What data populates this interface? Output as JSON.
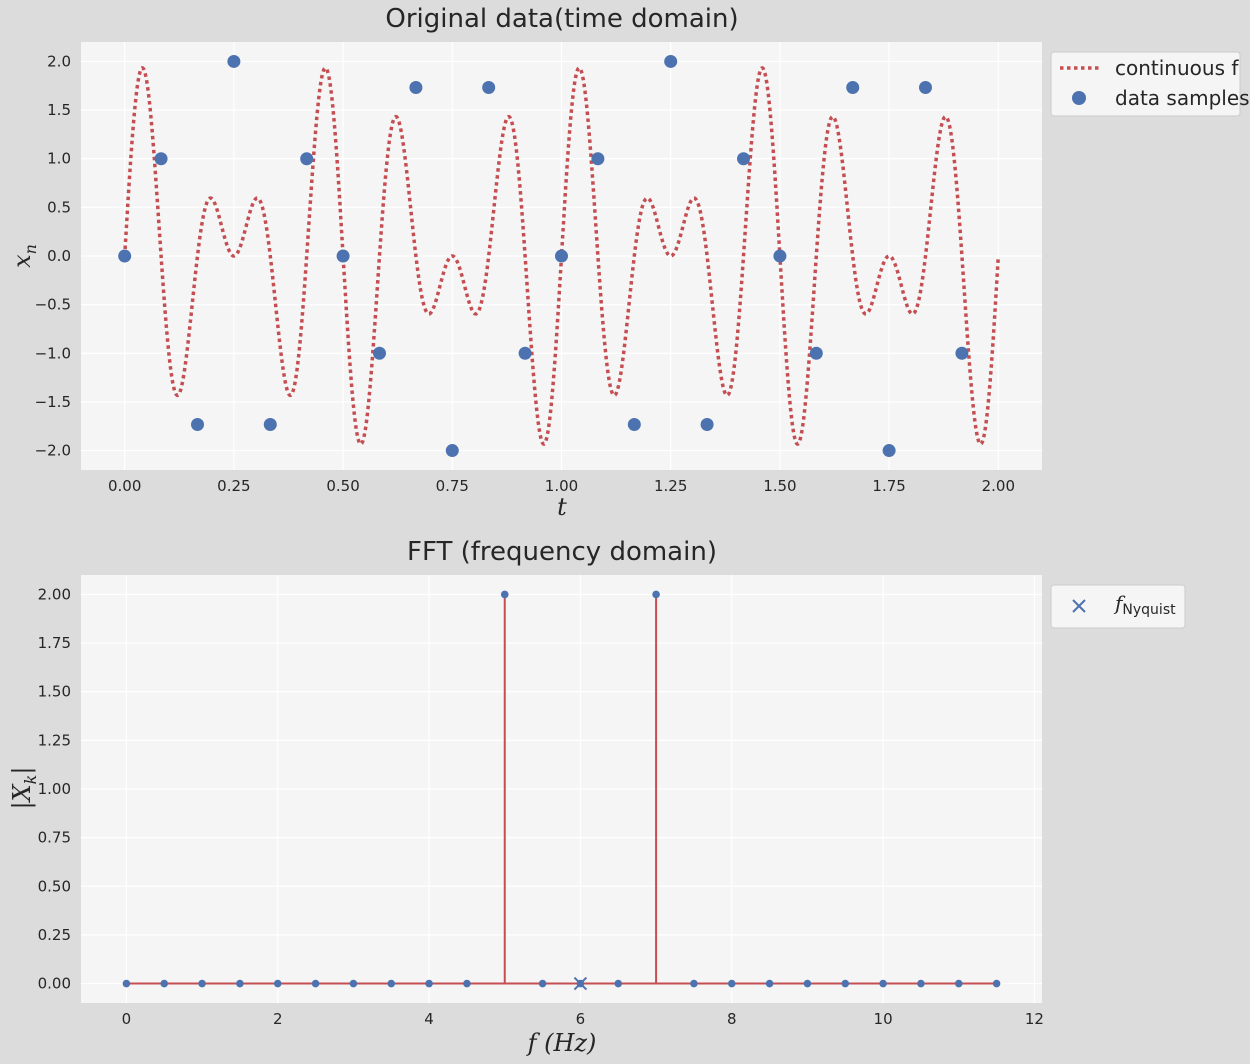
{
  "chart_data": [
    {
      "type": "line",
      "title": "Original data(time domain)",
      "xlabel": "t",
      "ylabel_main": "x",
      "ylabel_sub": "n",
      "xlim": [
        -0.1,
        2.1
      ],
      "ylim": [
        -2.2,
        2.2
      ],
      "xticks": [
        0,
        0.25,
        0.5,
        0.75,
        1.0,
        1.25,
        1.5,
        1.75,
        2.0
      ],
      "xtick_labels": [
        "0.00",
        "0.25",
        "0.50",
        "0.75",
        "1.00",
        "1.25",
        "1.50",
        "1.75",
        "2.00"
      ],
      "yticks": [
        2.0,
        1.5,
        1.0,
        0.5,
        0.0,
        -0.5,
        -1.0,
        -1.5,
        -2.0
      ],
      "ytick_labels": [
        "2.0",
        "1.5",
        "1.0",
        "0.5",
        "0.0",
        "−0.5",
        "−1.0",
        "−1.5",
        "−2.0"
      ],
      "grid": true,
      "legend_position": "outside upper right",
      "series": [
        {
          "name": "continuous f",
          "style": "dotted line",
          "color": "#c44e52",
          "function": "sin(2π·5t) + sin(2π·7t)",
          "x_range": [
            0,
            2
          ]
        },
        {
          "name": "data samples",
          "style": "markers",
          "color": "#4c72b0",
          "x": [
            0,
            0.0833,
            0.1667,
            0.25,
            0.3333,
            0.4167,
            0.5,
            0.5833,
            0.6667,
            0.75,
            0.8333,
            0.9167,
            1.0,
            1.0833,
            1.1667,
            1.25,
            1.3333,
            1.4167,
            1.5,
            1.5833,
            1.6667,
            1.75,
            1.8333,
            1.9167
          ],
          "y": [
            0,
            1.0,
            -1.732,
            2.0,
            -1.732,
            1.0,
            0,
            -1.0,
            1.732,
            -2.0,
            1.732,
            -1.0,
            0,
            1.0,
            -1.732,
            2.0,
            -1.732,
            1.0,
            0,
            -1.0,
            1.732,
            -2.0,
            1.732,
            -1.0
          ]
        }
      ]
    },
    {
      "type": "stem",
      "title": "FFT (frequency domain)",
      "xlabel": "f (Hz)",
      "ylabel_main": "|X",
      "ylabel_sub": "k",
      "ylabel_end": "|",
      "xlim": [
        -0.6,
        12.1
      ],
      "ylim": [
        -0.1,
        2.1
      ],
      "xticks": [
        0,
        2,
        4,
        6,
        8,
        10,
        12
      ],
      "xtick_labels": [
        "0",
        "2",
        "4",
        "6",
        "8",
        "10",
        "12"
      ],
      "yticks": [
        2.0,
        1.75,
        1.5,
        1.25,
        1.0,
        0.75,
        0.5,
        0.25,
        0.0
      ],
      "ytick_labels": [
        "2.00",
        "1.75",
        "1.50",
        "1.25",
        "1.00",
        "0.75",
        "0.50",
        "0.25",
        "0.00"
      ],
      "grid": true,
      "legend_position": "outside upper right",
      "series": [
        {
          "name": "|X_k|",
          "stem_color": "#c44e52",
          "marker_color": "#4c72b0",
          "x": [
            0,
            0.5,
            1,
            1.5,
            2,
            2.5,
            3,
            3.5,
            4,
            4.5,
            5,
            5.5,
            6,
            6.5,
            7,
            7.5,
            8,
            8.5,
            9,
            9.5,
            10,
            10.5,
            11,
            11.5
          ],
          "y": [
            0,
            0,
            0,
            0,
            0,
            0,
            0,
            0,
            0,
            0,
            2.0,
            0,
            0,
            0,
            2.0,
            0,
            0,
            0,
            0,
            0,
            0,
            0,
            0,
            0
          ]
        },
        {
          "name_main": "f",
          "name_sub": "Nyquist",
          "style": "x marker",
          "color": "#4c72b0",
          "x": [
            6
          ],
          "y": [
            0
          ]
        }
      ]
    }
  ]
}
